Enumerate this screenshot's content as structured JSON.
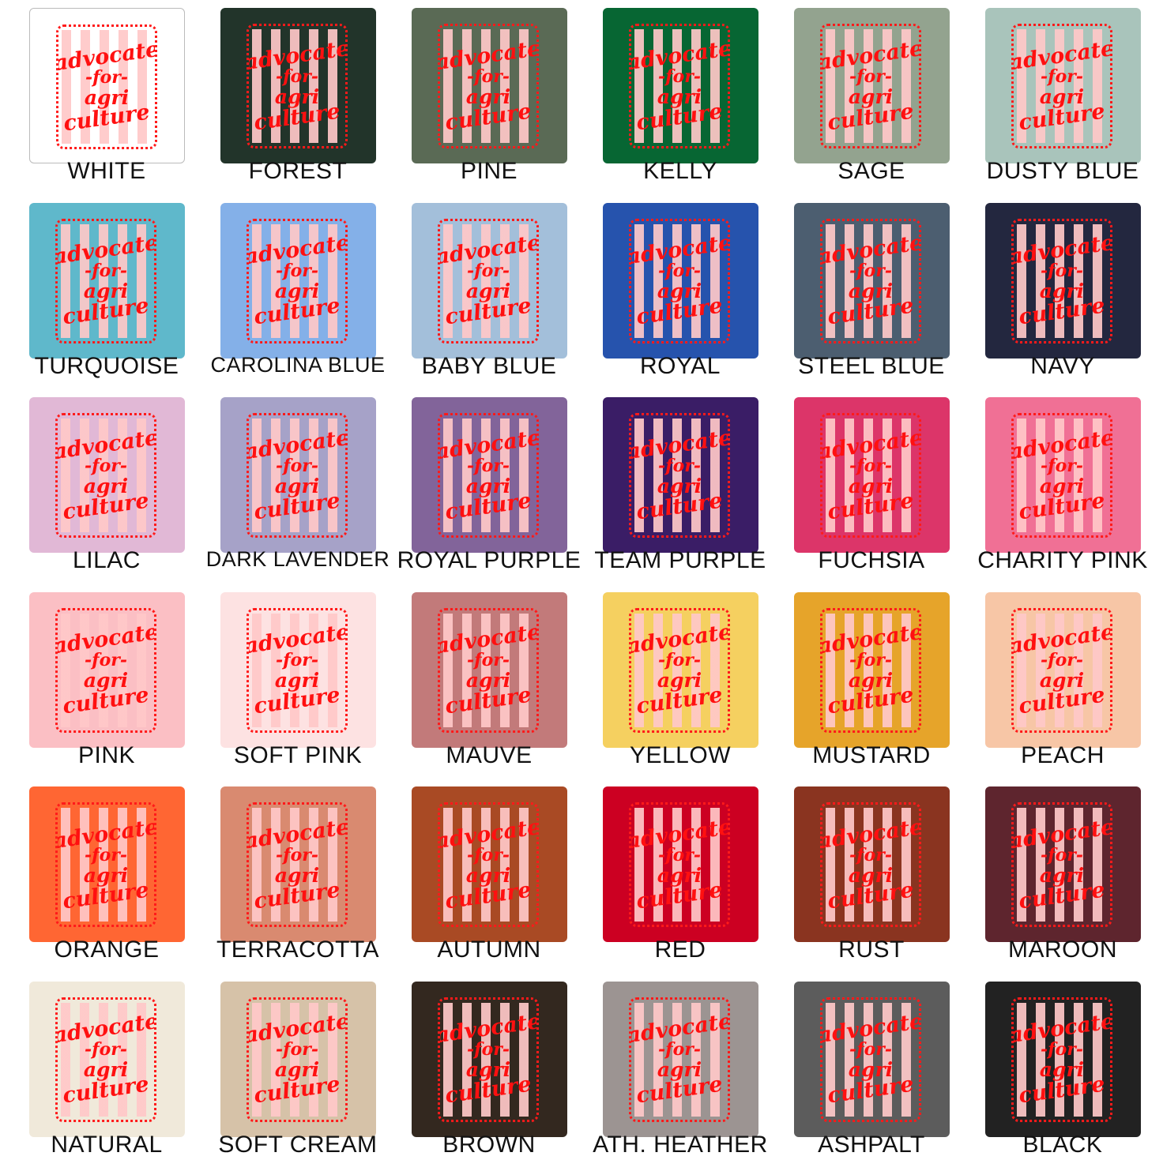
{
  "design_text": [
    "advocate",
    "-for-",
    "agri",
    "culture"
  ],
  "swatches": [
    {
      "label": "WHITE",
      "color": "#ffffff"
    },
    {
      "label": "FOREST",
      "color": "#22342a"
    },
    {
      "label": "PINE",
      "color": "#5a6a55"
    },
    {
      "label": "KELLY",
      "color": "#076633"
    },
    {
      "label": "SAGE",
      "color": "#93a38f"
    },
    {
      "label": "DUSTY BLUE",
      "color": "#a9c4bb"
    },
    {
      "label": "TURQUOISE",
      "color": "#5fb8cb"
    },
    {
      "label": "CAROLINA BLUE",
      "color": "#84b0e8"
    },
    {
      "label": "BABY BLUE",
      "color": "#a3bfda"
    },
    {
      "label": "ROYAL",
      "color": "#2653ad"
    },
    {
      "label": "STEEL BLUE",
      "color": "#4c5e70"
    },
    {
      "label": "NAVY",
      "color": "#23273f"
    },
    {
      "label": "LILAC",
      "color": "#e1b8d6"
    },
    {
      "label": "DARK LAVENDER",
      "color": "#a6a2c8"
    },
    {
      "label": "ROYAL PURPLE",
      "color": "#82649a"
    },
    {
      "label": "TEAM PURPLE",
      "color": "#3a1d66"
    },
    {
      "label": "FUCHSIA",
      "color": "#dc3569"
    },
    {
      "label": "CHARITY PINK",
      "color": "#f07095"
    },
    {
      "label": "PINK",
      "color": "#fbbfc4"
    },
    {
      "label": "SOFT PINK",
      "color": "#fde2e2"
    },
    {
      "label": "MAUVE",
      "color": "#c27a7a"
    },
    {
      "label": "YELLOW",
      "color": "#f5d060"
    },
    {
      "label": "MUSTARD",
      "color": "#e6a42a"
    },
    {
      "label": "PEACH",
      "color": "#f7c6a6"
    },
    {
      "label": "ORANGE",
      "color": "#ff6633"
    },
    {
      "label": "TERRACOTTA",
      "color": "#d98a70"
    },
    {
      "label": "AUTUMN",
      "color": "#a94a24"
    },
    {
      "label": "RED",
      "color": "#cc0022"
    },
    {
      "label": "RUST",
      "color": "#8a3420"
    },
    {
      "label": "MAROON",
      "color": "#5e252e"
    },
    {
      "label": "NATURAL",
      "color": "#f0e9da"
    },
    {
      "label": "SOFT CREAM",
      "color": "#d6c2a8"
    },
    {
      "label": "BROWN",
      "color": "#33281f"
    },
    {
      "label": "ATH. HEATHER",
      "color": "#9c9492"
    },
    {
      "label": "ASHPALT",
      "color": "#5c5c5c"
    },
    {
      "label": "BLACK",
      "color": "#222222"
    }
  ]
}
